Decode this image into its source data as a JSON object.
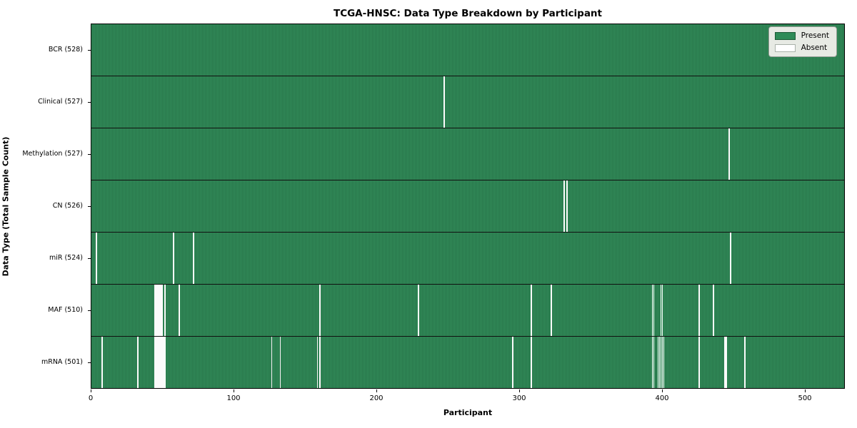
{
  "chart_data": {
    "type": "heatmap",
    "title": "TCGA-HNSC: Data Type Breakdown by Participant",
    "xlabel": "Participant",
    "ylabel": "Data Type (Total Sample Count)",
    "x_ticks": [
      0,
      100,
      200,
      300,
      400,
      500
    ],
    "x_range": [
      0,
      528
    ],
    "n_participants": 528,
    "grid": false,
    "legend_position": "upper right",
    "colors": {
      "present": "#2e8b57",
      "present_edge": "#1c5a36",
      "absent": "#ffffff",
      "row_divider": "#101010",
      "plot_border": "#000000",
      "legend_bg": "#e7eae4"
    },
    "legend": [
      {
        "label": "Present",
        "color": "#2e8b57"
      },
      {
        "label": "Absent",
        "color": "#ffffff"
      }
    ],
    "rows": [
      {
        "label": "BCR (528)",
        "data_type": "BCR",
        "present_count": 528,
        "absent_count": 0,
        "absent_participants": []
      },
      {
        "label": "Clinical (527)",
        "data_type": "Clinical",
        "present_count": 527,
        "absent_count": 1,
        "absent_participants": [
          247
        ]
      },
      {
        "label": "Methylation (527)",
        "data_type": "Methylation",
        "present_count": 527,
        "absent_count": 1,
        "absent_participants": [
          447
        ]
      },
      {
        "label": "CN (526)",
        "data_type": "CN",
        "present_count": 526,
        "absent_count": 2,
        "absent_participants": [
          331,
          333
        ]
      },
      {
        "label": "miR (524)",
        "data_type": "miR",
        "present_count": 524,
        "absent_count": 4,
        "absent_participants": [
          3,
          57,
          71,
          448
        ]
      },
      {
        "label": "MAF (510)",
        "data_type": "MAF",
        "present_count": 510,
        "absent_count": 18,
        "absent_participants": [
          44,
          45,
          46,
          47,
          48,
          49,
          51,
          61,
          160,
          229,
          308,
          322,
          393,
          394,
          399,
          400,
          426,
          436
        ]
      },
      {
        "label": "mRNA (501)",
        "data_type": "mRNA",
        "present_count": 501,
        "absent_count": 27,
        "absent_participants": [
          7,
          32,
          44,
          45,
          46,
          47,
          48,
          49,
          50,
          51,
          126,
          132,
          158,
          160,
          295,
          308,
          393,
          394,
          397,
          398,
          399,
          400,
          401,
          426,
          444,
          445,
          458
        ]
      }
    ]
  }
}
